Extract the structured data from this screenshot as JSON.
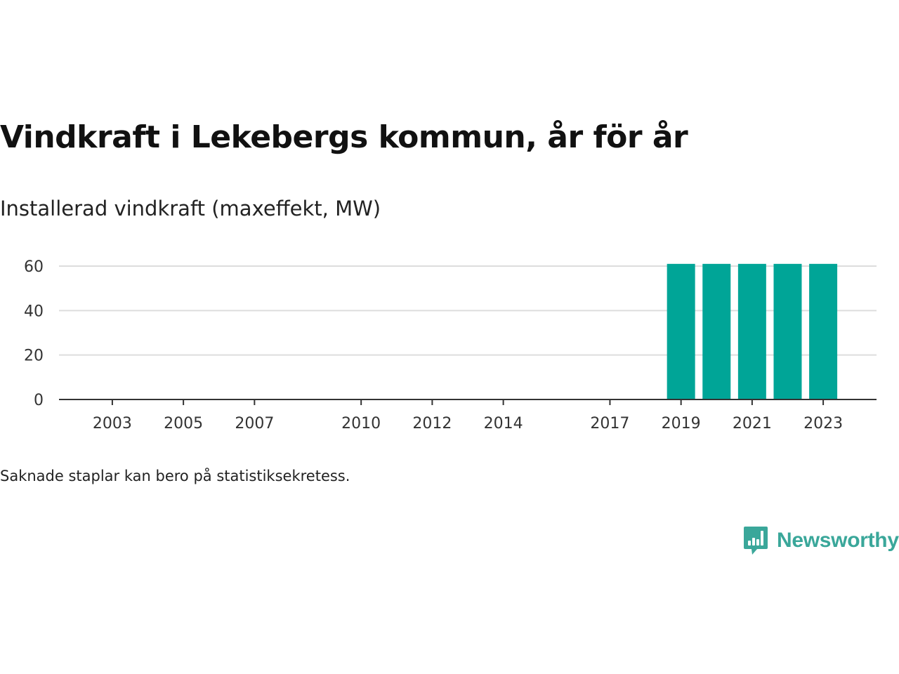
{
  "header": {
    "title": "Vindkraft i Lekebergs kommun, år för år",
    "subtitle": "Installerad vindkraft (maxeffekt, MW)"
  },
  "footer": {
    "note": "Saknade staplar kan bero på statistiksekretess.",
    "brand": "Newsworthy",
    "brand_icon": "bar-chart-speech-bubble-icon"
  },
  "colors": {
    "bar": "#00a597",
    "grid": "#dddddd",
    "axis": "#333333",
    "brand": "#3aa79a"
  },
  "chart_data": {
    "type": "bar",
    "title": "Vindkraft i Lekebergs kommun, år för år",
    "subtitle": "Installerad vindkraft (maxeffekt, MW)",
    "xlabel": "",
    "ylabel": "",
    "xlim": [
      2001.5,
      2024.5
    ],
    "ylim": [
      0,
      60
    ],
    "yticks": [
      0,
      20,
      40,
      60
    ],
    "xticks": [
      2003,
      2005,
      2007,
      2010,
      2012,
      2014,
      2017,
      2019,
      2021,
      2023
    ],
    "grid": true,
    "legend": "none",
    "x": [
      2019,
      2020,
      2021,
      2022,
      2023
    ],
    "values": [
      61,
      61,
      61,
      61,
      61
    ]
  }
}
